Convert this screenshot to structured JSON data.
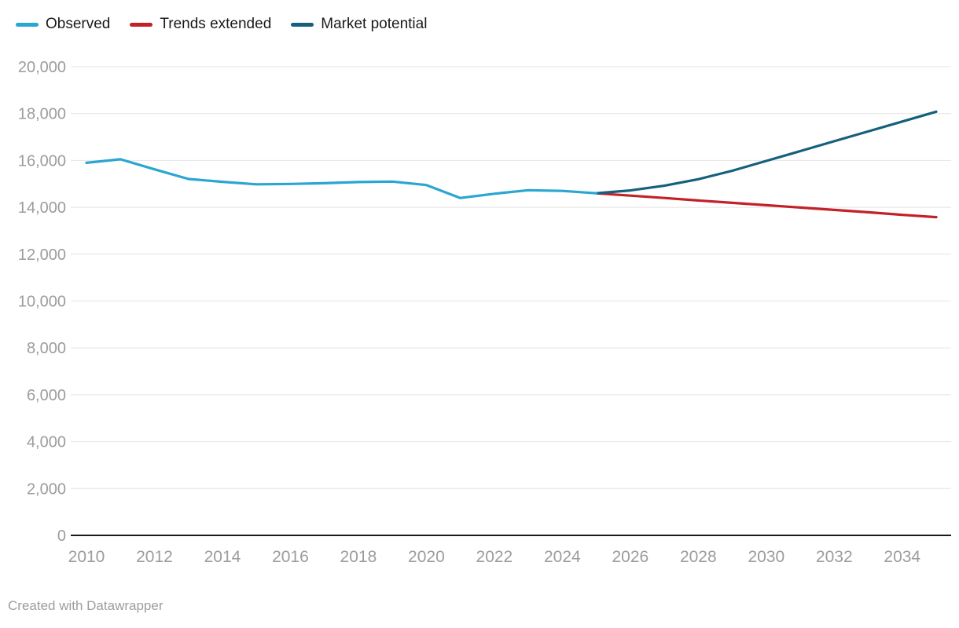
{
  "legend": {
    "items": [
      {
        "label": "Observed",
        "color": "#2aa6d0"
      },
      {
        "label": "Trends extended",
        "color": "#c22128"
      },
      {
        "label": "Market potential",
        "color": "#15607a"
      }
    ]
  },
  "footer": {
    "attribution": "Created with Datawrapper"
  },
  "colors": {
    "gridline": "#e4e4e4",
    "axis_line": "#1a1a1a",
    "tick_label": "#9c9c9c"
  },
  "chart_data": {
    "type": "line",
    "title": "",
    "xlabel": "",
    "ylabel": "",
    "xlim": [
      2010,
      2035
    ],
    "ylim": [
      0,
      20000
    ],
    "y_tick_step": 2000,
    "grid": "horizontal",
    "legend_position": "top-left",
    "x_tick_labels": [
      "2010",
      "2012",
      "2014",
      "2016",
      "2018",
      "2020",
      "2022",
      "2024",
      "2026",
      "2028",
      "2030",
      "2032",
      "2034"
    ],
    "y_tick_labels": [
      "0",
      "2,000",
      "4,000",
      "6,000",
      "8,000",
      "10,000",
      "12,000",
      "14,000",
      "16,000",
      "18,000",
      "20,000"
    ],
    "series": [
      {
        "name": "Observed",
        "color": "#2aa6d0",
        "start_year": 2010,
        "values": [
          15900,
          16050,
          15620,
          15210,
          15090,
          14980,
          15000,
          15030,
          15080,
          15100,
          14950,
          14400,
          14580,
          14730,
          14700,
          14600
        ]
      },
      {
        "name": "Trends extended",
        "color": "#c22128",
        "start_year": 2025,
        "values": [
          14600,
          14500,
          14400,
          14290,
          14190,
          14090,
          13990,
          13890,
          13790,
          13680,
          13580
        ]
      },
      {
        "name": "Market potential",
        "color": "#15607a",
        "start_year": 2025,
        "values": [
          14600,
          14720,
          14920,
          15200,
          15560,
          15980,
          16400,
          16820,
          17240,
          17660,
          18080
        ]
      }
    ]
  }
}
